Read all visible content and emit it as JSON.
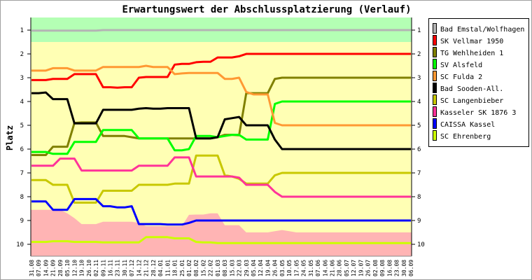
{
  "chart_data": {
    "type": "line",
    "title": "Erwartungswert der Abschlussplatzierung (Verlauf)",
    "xlabel": "",
    "ylabel": "Platz",
    "ylim": [
      0.47,
      10.5
    ],
    "yticks": [
      1,
      2,
      3,
      4,
      5,
      6,
      7,
      8,
      9,
      10
    ],
    "grid": false,
    "legend_position": "right",
    "x": [
      "31.08",
      "07.09",
      "14.09",
      "21.09",
      "28.09",
      "05.10",
      "12.10",
      "19.10",
      "26.10",
      "02.11",
      "09.11",
      "16.11",
      "23.11",
      "30.11",
      "07.12",
      "14.12",
      "21.12",
      "28.12",
      "04.01",
      "11.01",
      "18.01",
      "25.01",
      "01.02",
      "08.02",
      "15.02",
      "22.02",
      "01.03",
      "08.03",
      "15.03",
      "22.03",
      "29.03",
      "05.04",
      "12.04",
      "19.04",
      "26.04",
      "03.05",
      "10.05",
      "17.05",
      "24.05",
      "31.05",
      "07.06",
      "14.06",
      "21.06",
      "28.06",
      "05.07",
      "12.07",
      "19.07",
      "26.07",
      "02.08",
      "09.08",
      "16.08",
      "23.08",
      "30.08",
      "06.09"
    ],
    "bands": [
      {
        "from": 0.47,
        "to": 1.5,
        "color": "#b4ffb4"
      },
      {
        "from": 1.5,
        "to": 10.5,
        "color": "#ffffb4"
      }
    ],
    "relegation_area": {
      "color": "#ffb4b4",
      "top": [
        8.55,
        8.55,
        8.55,
        8.55,
        8.55,
        8.7,
        8.9,
        9.15,
        9.15,
        9.15,
        9.05,
        9.05,
        9.05,
        9.05,
        9.05,
        9.1,
        9.24,
        9.24,
        9.24,
        9.24,
        9.24,
        9.24,
        8.76,
        8.75,
        8.75,
        8.7,
        8.7,
        9.2,
        9.2,
        9.2,
        9.5,
        9.5,
        9.5,
        9.5,
        9.45,
        9.4,
        9.45,
        9.5,
        9.5,
        9.5,
        9.5,
        9.5,
        9.5,
        9.5,
        9.5,
        9.5,
        9.5,
        9.5,
        9.5,
        9.5,
        9.5,
        9.5,
        9.5,
        9.5
      ]
    },
    "series": [
      {
        "name": "Bad Emstal/Wolfhagen",
        "color": "#b4b4b4",
        "values": [
          1.02,
          1.02,
          1.02,
          1.02,
          1.02,
          1.02,
          1.02,
          1.02,
          1.02,
          1.02,
          1.0,
          1.0,
          1.0,
          1.0,
          1.0,
          1.0,
          1.0,
          1.0,
          1.0,
          1.0,
          1.0,
          1.0,
          1.0,
          1.0,
          1.0,
          1.0,
          1.0,
          1.0,
          1.0,
          1.0,
          1.0,
          1.0,
          1.0,
          1.0,
          1.0,
          1.0,
          1.0,
          1.0,
          1.0,
          1.0,
          1.0,
          1.0,
          1.0,
          1.0,
          1.0,
          1.0,
          1.0,
          1.0,
          1.0,
          1.0,
          1.0,
          1.0,
          1.0,
          1.0
        ]
      },
      {
        "name": "SK Vellmar 1950",
        "color": "#ff0000",
        "values": [
          3.1,
          3.1,
          3.1,
          3.05,
          3.05,
          3.05,
          2.85,
          2.85,
          2.85,
          2.85,
          3.4,
          3.4,
          3.42,
          3.4,
          3.4,
          3.0,
          2.97,
          2.97,
          2.97,
          2.97,
          2.45,
          2.42,
          2.42,
          2.35,
          2.33,
          2.33,
          2.15,
          2.15,
          2.15,
          2.1,
          2.0,
          2.0,
          2.0,
          2.0,
          2.0,
          2.0,
          2.0,
          2.0,
          2.0,
          2.0,
          2.0,
          2.0,
          2.0,
          2.0,
          2.0,
          2.0,
          2.0,
          2.0,
          2.0,
          2.0,
          2.0,
          2.0,
          2.0,
          2.0
        ]
      },
      {
        "name": "TG Wehlheiden 1",
        "color": "#808000",
        "values": [
          6.25,
          6.25,
          6.25,
          5.9,
          5.9,
          5.9,
          4.9,
          4.88,
          4.88,
          4.88,
          5.45,
          5.45,
          5.45,
          5.45,
          5.5,
          5.55,
          5.55,
          5.55,
          5.55,
          5.55,
          5.55,
          5.55,
          5.55,
          5.55,
          5.55,
          5.55,
          5.5,
          5.4,
          5.4,
          5.42,
          3.65,
          3.65,
          3.65,
          3.65,
          3.05,
          3.0,
          3.0,
          3.0,
          3.0,
          3.0,
          3.0,
          3.0,
          3.0,
          3.0,
          3.0,
          3.0,
          3.0,
          3.0,
          3.0,
          3.0,
          3.0,
          3.0,
          3.0,
          3.0
        ]
      },
      {
        "name": "SV Alsfeld",
        "color": "#00ff00",
        "values": [
          6.12,
          6.12,
          6.12,
          6.2,
          6.2,
          6.2,
          5.7,
          5.7,
          5.7,
          5.7,
          5.2,
          5.2,
          5.2,
          5.2,
          5.2,
          5.55,
          5.55,
          5.55,
          5.55,
          5.55,
          6.05,
          6.05,
          6.0,
          5.45,
          5.45,
          5.45,
          5.5,
          5.45,
          5.4,
          5.4,
          5.6,
          5.6,
          5.6,
          5.6,
          4.1,
          4.0,
          4.0,
          4.0,
          4.0,
          4.0,
          4.0,
          4.0,
          4.0,
          4.0,
          4.0,
          4.0,
          4.0,
          4.0,
          4.0,
          4.0,
          4.0,
          4.0,
          4.0,
          4.0
        ]
      },
      {
        "name": "SC Fulda 2",
        "color": "#ff9933",
        "values": [
          2.7,
          2.7,
          2.7,
          2.6,
          2.6,
          2.6,
          2.7,
          2.7,
          2.7,
          2.7,
          2.55,
          2.55,
          2.55,
          2.55,
          2.55,
          2.55,
          2.5,
          2.55,
          2.55,
          2.55,
          2.85,
          2.82,
          2.8,
          2.8,
          2.8,
          2.8,
          2.8,
          3.05,
          3.05,
          3.0,
          3.6,
          3.7,
          3.7,
          3.7,
          4.9,
          5.0,
          5.0,
          5.0,
          5.0,
          5.0,
          5.0,
          5.0,
          5.0,
          5.0,
          5.0,
          5.0,
          5.0,
          5.0,
          5.0,
          5.0,
          5.0,
          5.0,
          5.0,
          5.0
        ]
      },
      {
        "name": "Bad Sooden-All.",
        "color": "#000000",
        "values": [
          3.65,
          3.65,
          3.62,
          3.9,
          3.9,
          3.9,
          4.92,
          4.92,
          4.92,
          4.92,
          4.35,
          4.35,
          4.35,
          4.35,
          4.35,
          4.3,
          4.28,
          4.3,
          4.3,
          4.28,
          4.28,
          4.28,
          4.28,
          5.55,
          5.55,
          5.55,
          5.5,
          4.75,
          4.7,
          4.65,
          5.0,
          5.0,
          5.0,
          5.0,
          5.6,
          6.0,
          6.0,
          6.0,
          6.0,
          6.0,
          6.0,
          6.0,
          6.0,
          6.0,
          6.0,
          6.0,
          6.0,
          6.0,
          6.0,
          6.0,
          6.0,
          6.0,
          6.0,
          6.0
        ]
      },
      {
        "name": "SC Langenbieber",
        "color": "#c8c800",
        "values": [
          7.3,
          7.3,
          7.3,
          7.5,
          7.5,
          7.5,
          8.25,
          8.25,
          8.25,
          8.25,
          7.75,
          7.75,
          7.75,
          7.75,
          7.75,
          7.5,
          7.5,
          7.5,
          7.5,
          7.5,
          7.45,
          7.45,
          7.45,
          6.27,
          6.27,
          6.27,
          6.27,
          7.1,
          7.15,
          7.25,
          7.45,
          7.45,
          7.45,
          7.45,
          7.1,
          7.0,
          7.0,
          7.0,
          7.0,
          7.0,
          7.0,
          7.0,
          7.0,
          7.0,
          7.0,
          7.0,
          7.0,
          7.0,
          7.0,
          7.0,
          7.0,
          7.0,
          7.0,
          7.0
        ]
      },
      {
        "name": "Kasseler SK 1876 3",
        "color": "#ff3399",
        "values": [
          6.7,
          6.7,
          6.7,
          6.7,
          6.4,
          6.4,
          6.4,
          6.9,
          6.9,
          6.9,
          6.9,
          6.9,
          6.9,
          6.9,
          6.9,
          6.7,
          6.7,
          6.7,
          6.7,
          6.7,
          6.35,
          6.35,
          6.35,
          7.15,
          7.15,
          7.15,
          7.15,
          7.15,
          7.15,
          7.2,
          7.5,
          7.5,
          7.5,
          7.5,
          7.8,
          8.0,
          8.0,
          8.0,
          8.0,
          8.0,
          8.0,
          8.0,
          8.0,
          8.0,
          8.0,
          8.0,
          8.0,
          8.0,
          8.0,
          8.0,
          8.0,
          8.0,
          8.0,
          8.0
        ]
      },
      {
        "name": "CAISSA Kassel",
        "color": "#0000ff",
        "values": [
          8.2,
          8.2,
          8.2,
          8.55,
          8.55,
          8.55,
          8.1,
          8.1,
          8.1,
          8.1,
          8.4,
          8.4,
          8.45,
          8.45,
          8.4,
          9.15,
          9.15,
          9.15,
          9.15,
          9.17,
          9.17,
          9.17,
          9.1,
          9.0,
          9.0,
          9.0,
          9.0,
          9.0,
          9.0,
          9.0,
          9.0,
          9.0,
          9.0,
          9.0,
          9.0,
          9.0,
          9.0,
          9.0,
          9.0,
          9.0,
          9.0,
          9.0,
          9.0,
          9.0,
          9.0,
          9.0,
          9.0,
          9.0,
          9.0,
          9.0,
          9.0,
          9.0,
          9.0,
          9.0
        ]
      },
      {
        "name": "SC Ehrenberg",
        "color": "#ccff00",
        "values": [
          9.9,
          9.9,
          9.9,
          9.87,
          9.87,
          9.87,
          9.9,
          9.9,
          9.9,
          9.9,
          9.92,
          9.92,
          9.92,
          9.92,
          9.92,
          9.92,
          9.7,
          9.7,
          9.7,
          9.7,
          9.75,
          9.75,
          9.75,
          9.9,
          9.92,
          9.92,
          9.95,
          9.95,
          9.95,
          9.95,
          9.95,
          9.95,
          9.95,
          9.95,
          9.95,
          9.95,
          9.95,
          9.95,
          9.95,
          9.95,
          9.95,
          9.95,
          9.95,
          9.95,
          9.95,
          9.95,
          9.95,
          9.95,
          9.95,
          9.95,
          9.95,
          9.95,
          9.95,
          9.95
        ]
      }
    ]
  }
}
